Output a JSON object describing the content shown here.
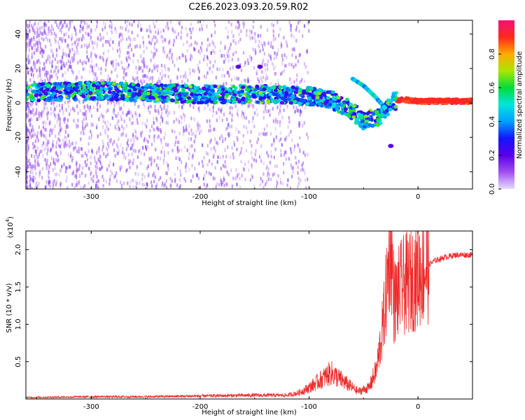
{
  "title": "C2E6.2023.093.20.59.R02",
  "chart_data": [
    {
      "type": "heatmap",
      "xlabel": "Height of straight line (km)",
      "ylabel": "Frequency (Hz)",
      "xlim": [
        -360,
        50
      ],
      "ylim": [
        -50,
        48
      ],
      "x_ticks": [
        -300,
        -200,
        -100,
        0
      ],
      "y_ticks": [
        -40,
        -20,
        0,
        20,
        40
      ],
      "grid": false,
      "description_points": {
        "main_band": [
          {
            "x": -355,
            "y": 6
          },
          {
            "x": -300,
            "y": 7
          },
          {
            "x": -250,
            "y": 6
          },
          {
            "x": -200,
            "y": 5
          },
          {
            "x": -150,
            "y": 5
          },
          {
            "x": -120,
            "y": 5
          },
          {
            "x": -100,
            "y": 4
          },
          {
            "x": -80,
            "y": 2
          },
          {
            "x": -65,
            "y": -3
          },
          {
            "x": -50,
            "y": -10
          },
          {
            "x": -35,
            "y": -8
          },
          {
            "x": -25,
            "y": 0
          },
          {
            "x": -15,
            "y": 2
          },
          {
            "x": 0,
            "y": 1
          },
          {
            "x": 20,
            "y": 1
          },
          {
            "x": 48,
            "y": 1
          }
        ],
        "upper_branch": [
          {
            "x": -60,
            "y": 14
          },
          {
            "x": -50,
            "y": 10
          },
          {
            "x": -40,
            "y": 4
          },
          {
            "x": -30,
            "y": -3
          }
        ],
        "isolated": [
          {
            "x": -165,
            "y": 21
          },
          {
            "x": -145,
            "y": 21
          },
          {
            "x": -25,
            "y": -25
          }
        ]
      }
    },
    {
      "type": "line",
      "xlabel": "Height of straight line (km)",
      "ylabel": "SNR (10 * v/v)",
      "y_multiplier_label": "(x10",
      "y_multiplier_exp": "4",
      "y_multiplier_close": ")",
      "xlim": [
        -360,
        50
      ],
      "ylim": [
        0,
        2.25
      ],
      "x_ticks": [
        -300,
        -200,
        -100,
        0
      ],
      "y_ticks": [
        0.5,
        1.0,
        1.5,
        2.0
      ],
      "y_tick_labels": [
        "0.5",
        "1.0",
        "1.5",
        "2.0"
      ],
      "series_color": "#ee2a2a",
      "envelope": [
        {
          "x": -360,
          "y": 0.02
        },
        {
          "x": -300,
          "y": 0.03
        },
        {
          "x": -250,
          "y": 0.03
        },
        {
          "x": -200,
          "y": 0.04
        },
        {
          "x": -150,
          "y": 0.05
        },
        {
          "x": -120,
          "y": 0.05
        },
        {
          "x": -110,
          "y": 0.08
        },
        {
          "x": -100,
          "y": 0.15
        },
        {
          "x": -90,
          "y": 0.25
        },
        {
          "x": -80,
          "y": 0.35
        },
        {
          "x": -75,
          "y": 0.3
        },
        {
          "x": -65,
          "y": 0.2
        },
        {
          "x": -55,
          "y": 0.1
        },
        {
          "x": -45,
          "y": 0.15
        },
        {
          "x": -38,
          "y": 0.4
        },
        {
          "x": -32,
          "y": 1.0
        },
        {
          "x": -28,
          "y": 1.6
        },
        {
          "x": -25,
          "y": 2.2
        },
        {
          "x": -22,
          "y": 1.3
        },
        {
          "x": -15,
          "y": 1.5
        },
        {
          "x": -5,
          "y": 1.6
        },
        {
          "x": 5,
          "y": 1.75
        },
        {
          "x": 15,
          "y": 1.85
        },
        {
          "x": 25,
          "y": 1.9
        },
        {
          "x": 35,
          "y": 1.93
        },
        {
          "x": 50,
          "y": 1.93
        }
      ]
    }
  ],
  "colorbar": {
    "label": "Normalized spectral amplitude",
    "ticks": [
      "0.0",
      "0.2",
      "0.4",
      "0.6",
      "0.8"
    ],
    "tick_values": [
      0.0,
      0.2,
      0.4,
      0.6,
      0.8
    ],
    "range": [
      0,
      1
    ]
  }
}
